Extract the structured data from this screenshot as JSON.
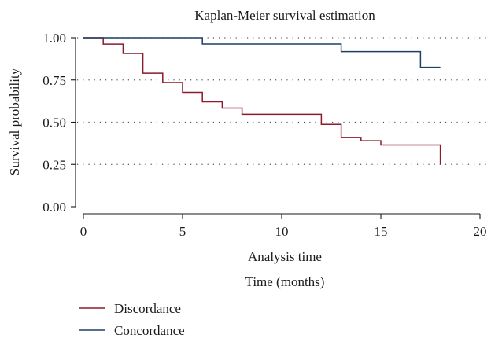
{
  "chart_data": {
    "type": "line",
    "subtype": "step",
    "title": "Kaplan-Meier survival estimation",
    "xlabel": "Analysis time",
    "x_sublabel": "Time (months)",
    "ylabel": "Survival probability",
    "xlim": [
      0,
      20
    ],
    "ylim": [
      0,
      1
    ],
    "x_ticks": [
      0,
      5,
      10,
      15,
      20
    ],
    "x_tick_labels": [
      "0",
      "5",
      "10",
      "15",
      "20"
    ],
    "y_ticks": [
      0,
      0.25,
      0.5,
      0.75,
      1
    ],
    "y_tick_labels": [
      "0.00",
      "0.25",
      "0.50",
      "0.75",
      "1.00"
    ],
    "grid": "horizontal dotted",
    "legend_position": "bottom-left",
    "series": [
      {
        "name": "Discordance",
        "color": "#8b1a2b",
        "x": [
          0,
          1,
          2,
          3,
          4,
          5,
          6,
          7,
          8,
          12,
          13,
          14,
          15,
          18,
          18
        ],
        "y": [
          1.0,
          0.962,
          0.907,
          0.79,
          0.735,
          0.677,
          0.621,
          0.584,
          0.547,
          0.487,
          0.41,
          0.39,
          0.365,
          0.365,
          0.25
        ]
      },
      {
        "name": "Concordance",
        "color": "#1f3f66",
        "x": [
          0,
          6,
          13,
          17,
          18
        ],
        "y": [
          1.0,
          0.963,
          0.918,
          0.825,
          0.825
        ]
      }
    ]
  }
}
